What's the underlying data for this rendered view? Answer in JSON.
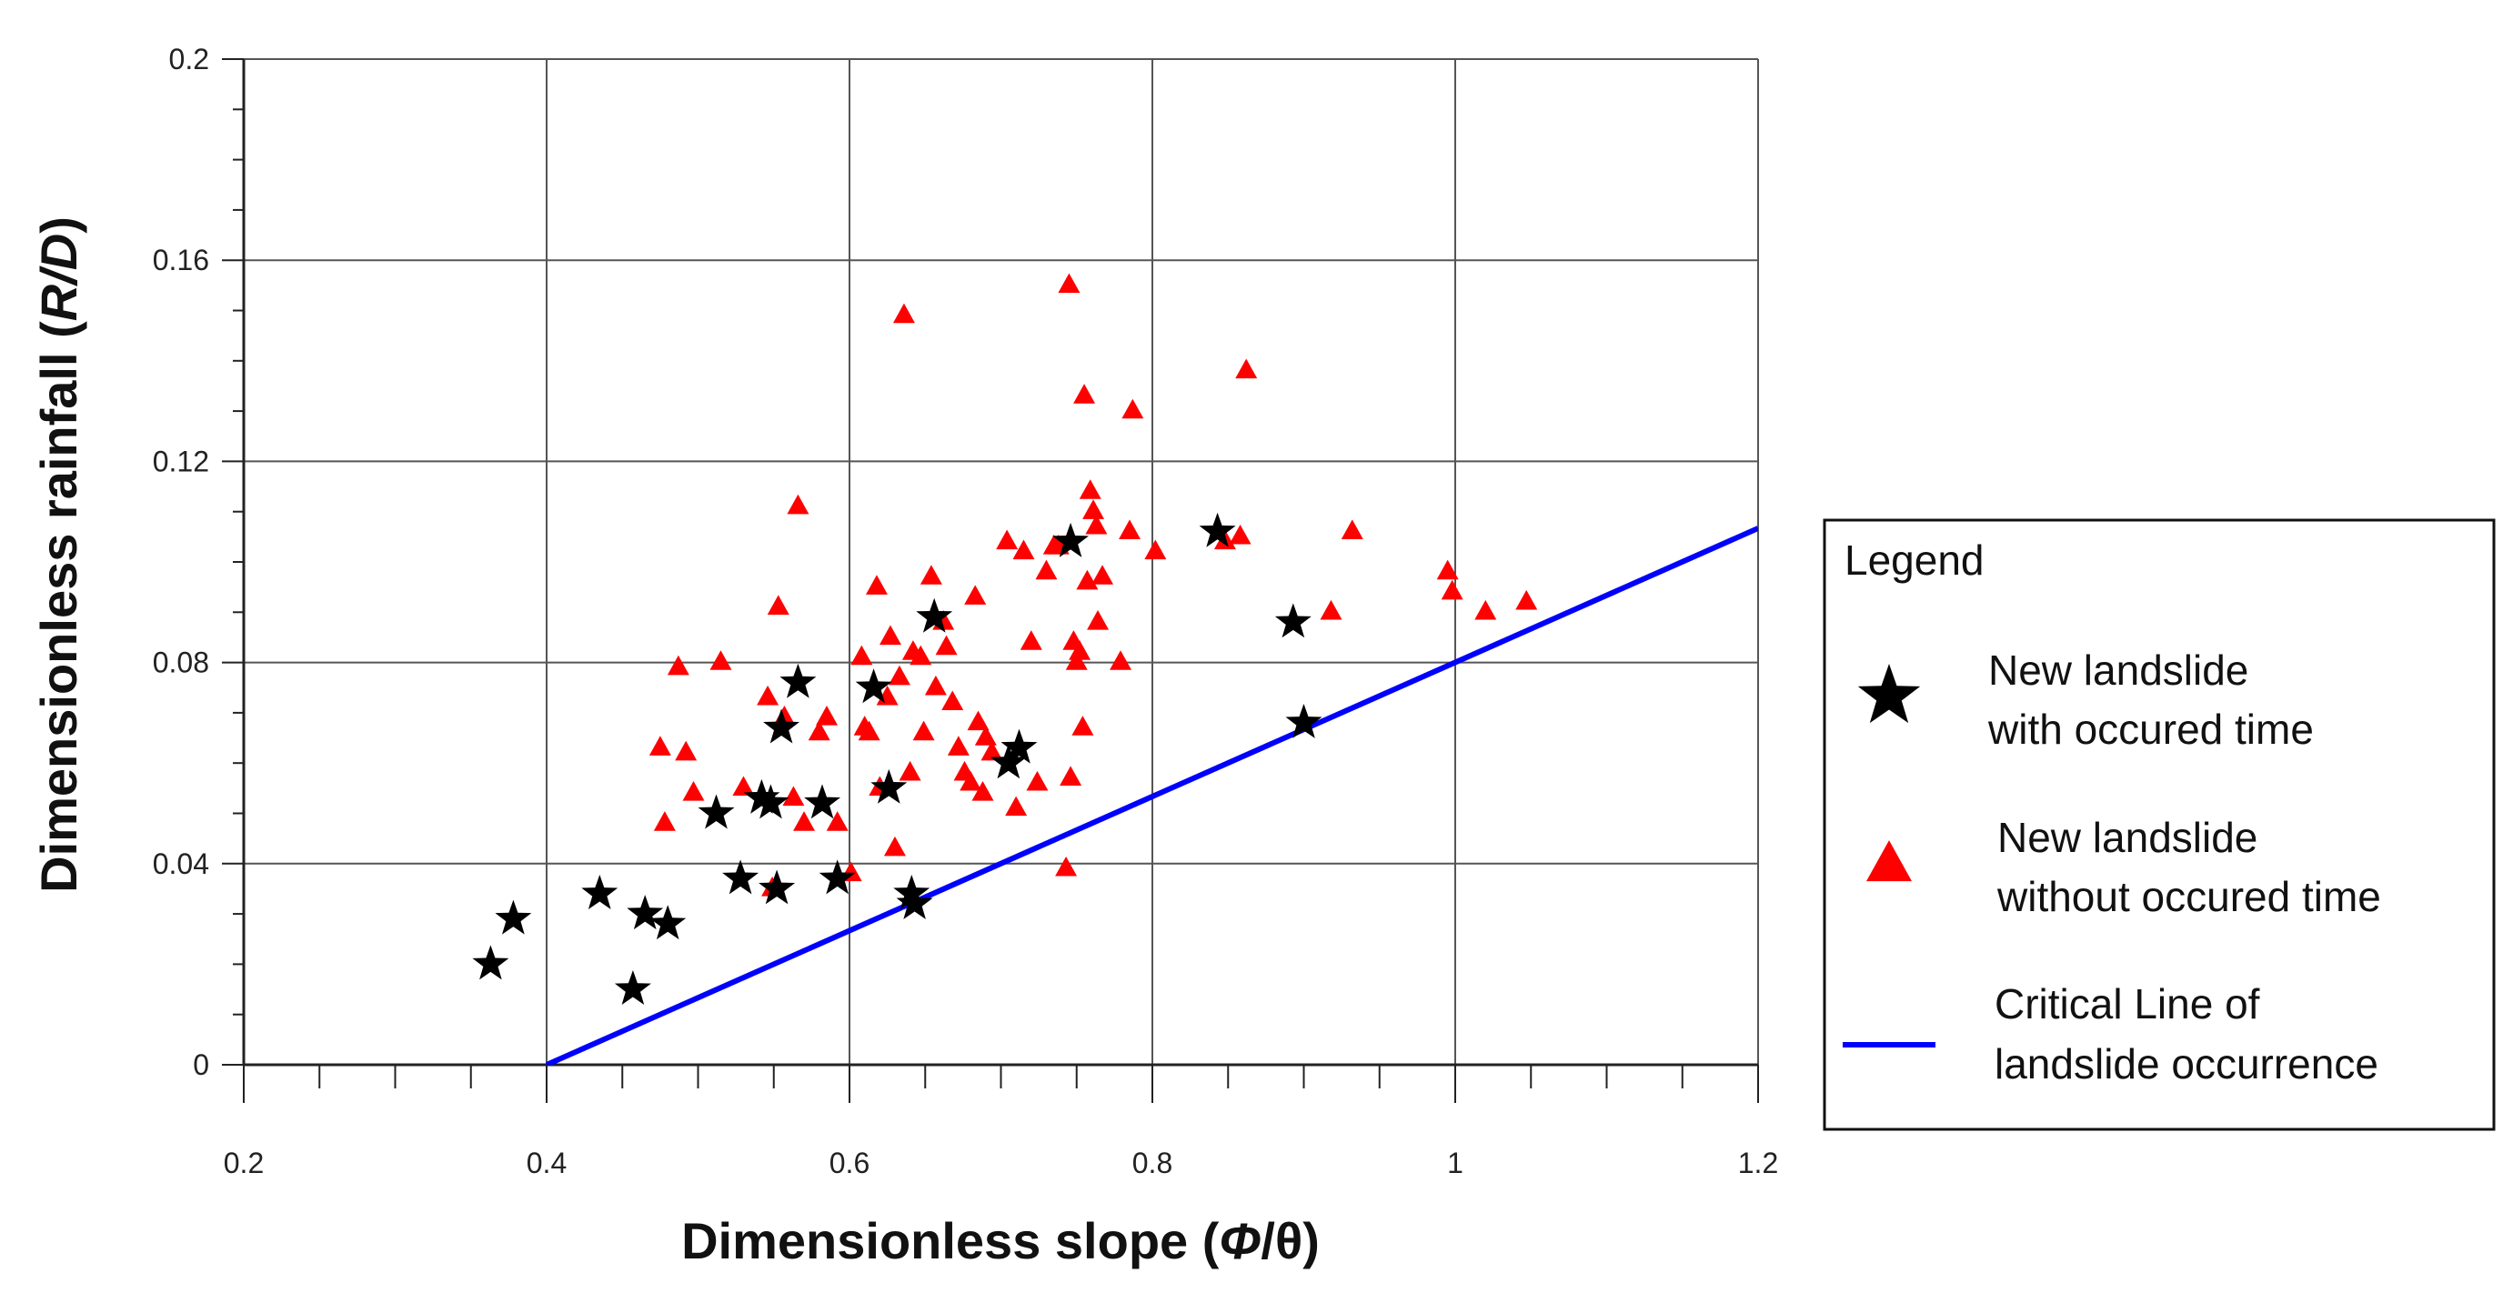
{
  "chart_data": {
    "type": "scatter",
    "title": "",
    "xlabel": {
      "prefix": "Dimensionless slope (",
      "italic": "Φ",
      "suffix": "/θ)"
    },
    "ylabel": {
      "prefix": "Dimensionless rainfall (",
      "italic": "R/D",
      "suffix": ")"
    },
    "xlim": [
      0.2,
      1.2
    ],
    "ylim": [
      0,
      0.2
    ],
    "x_ticks": [
      0.2,
      0.4,
      0.6,
      0.8,
      1.0,
      1.2
    ],
    "x_tick_labels": [
      "0.2",
      "0.4",
      "0.6",
      "0.8",
      "1",
      "1.2"
    ],
    "y_ticks": [
      0,
      0.04,
      0.08,
      0.12,
      0.16,
      0.2
    ],
    "y_tick_labels": [
      "0",
      "0.04",
      "0.08",
      "0.12",
      "0.16",
      "0.2"
    ],
    "grid": true,
    "legend": {
      "title": "Legend",
      "position": "right",
      "entries": [
        {
          "series": "stars",
          "lines": [
            "New landslide",
            "with occured time"
          ]
        },
        {
          "series": "triangles",
          "lines": [
            "New landslide",
            "without occured time"
          ]
        },
        {
          "series": "critical",
          "lines": [
            "Critical Line of",
            "landslide occurrence"
          ]
        }
      ]
    },
    "series": [
      {
        "name": "New landslide with occured time",
        "marker": "star",
        "color": "#000000",
        "points": [
          [
            0.363,
            0.02
          ],
          [
            0.378,
            0.029
          ],
          [
            0.435,
            0.034
          ],
          [
            0.457,
            0.015
          ],
          [
            0.465,
            0.03
          ],
          [
            0.48,
            0.028
          ],
          [
            0.512,
            0.05
          ],
          [
            0.528,
            0.037
          ],
          [
            0.542,
            0.053
          ],
          [
            0.548,
            0.052
          ],
          [
            0.552,
            0.035
          ],
          [
            0.555,
            0.067
          ],
          [
            0.566,
            0.076
          ],
          [
            0.582,
            0.052
          ],
          [
            0.592,
            0.037
          ],
          [
            0.616,
            0.075
          ],
          [
            0.626,
            0.055
          ],
          [
            0.641,
            0.034
          ],
          [
            0.643,
            0.032
          ],
          [
            0.656,
            0.089
          ],
          [
            0.705,
            0.06
          ],
          [
            0.712,
            0.063
          ],
          [
            0.746,
            0.104
          ],
          [
            0.843,
            0.106
          ],
          [
            0.893,
            0.088
          ],
          [
            0.9,
            0.068
          ]
        ]
      },
      {
        "name": "New landslide without occured time",
        "marker": "triangle",
        "color": "#ff0000",
        "points": [
          [
            0.475,
            0.063
          ],
          [
            0.478,
            0.048
          ],
          [
            0.487,
            0.079
          ],
          [
            0.492,
            0.062
          ],
          [
            0.497,
            0.054
          ],
          [
            0.515,
            0.08
          ],
          [
            0.53,
            0.055
          ],
          [
            0.546,
            0.073
          ],
          [
            0.549,
            0.035
          ],
          [
            0.553,
            0.091
          ],
          [
            0.557,
            0.069
          ],
          [
            0.563,
            0.053
          ],
          [
            0.566,
            0.111
          ],
          [
            0.57,
            0.048
          ],
          [
            0.58,
            0.066
          ],
          [
            0.585,
            0.069
          ],
          [
            0.592,
            0.048
          ],
          [
            0.601,
            0.038
          ],
          [
            0.608,
            0.081
          ],
          [
            0.61,
            0.067
          ],
          [
            0.613,
            0.066
          ],
          [
            0.618,
            0.095
          ],
          [
            0.62,
            0.055
          ],
          [
            0.625,
            0.073
          ],
          [
            0.627,
            0.085
          ],
          [
            0.63,
            0.043
          ],
          [
            0.633,
            0.077
          ],
          [
            0.636,
            0.149
          ],
          [
            0.64,
            0.058
          ],
          [
            0.642,
            0.082
          ],
          [
            0.647,
            0.081
          ],
          [
            0.649,
            0.066
          ],
          [
            0.654,
            0.097
          ],
          [
            0.657,
            0.075
          ],
          [
            0.662,
            0.088
          ],
          [
            0.664,
            0.083
          ],
          [
            0.668,
            0.072
          ],
          [
            0.672,
            0.063
          ],
          [
            0.676,
            0.058
          ],
          [
            0.68,
            0.056
          ],
          [
            0.683,
            0.093
          ],
          [
            0.685,
            0.068
          ],
          [
            0.688,
            0.054
          ],
          [
            0.69,
            0.065
          ],
          [
            0.694,
            0.062
          ],
          [
            0.704,
            0.104
          ],
          [
            0.71,
            0.051
          ],
          [
            0.715,
            0.102
          ],
          [
            0.72,
            0.084
          ],
          [
            0.724,
            0.056
          ],
          [
            0.73,
            0.098
          ],
          [
            0.735,
            0.103
          ],
          [
            0.738,
            0.103
          ],
          [
            0.743,
            0.039
          ],
          [
            0.745,
            0.155
          ],
          [
            0.746,
            0.057
          ],
          [
            0.748,
            0.084
          ],
          [
            0.75,
            0.08
          ],
          [
            0.752,
            0.082
          ],
          [
            0.754,
            0.067
          ],
          [
            0.755,
            0.133
          ],
          [
            0.757,
            0.096
          ],
          [
            0.759,
            0.114
          ],
          [
            0.761,
            0.11
          ],
          [
            0.763,
            0.107
          ],
          [
            0.764,
            0.088
          ],
          [
            0.767,
            0.097
          ],
          [
            0.779,
            0.08
          ],
          [
            0.785,
            0.106
          ],
          [
            0.787,
            0.13
          ],
          [
            0.802,
            0.102
          ],
          [
            0.848,
            0.104
          ],
          [
            0.858,
            0.105
          ],
          [
            0.862,
            0.138
          ],
          [
            0.918,
            0.09
          ],
          [
            0.932,
            0.106
          ],
          [
            0.995,
            0.098
          ],
          [
            0.998,
            0.094
          ],
          [
            1.02,
            0.09
          ],
          [
            1.047,
            0.092
          ]
        ]
      },
      {
        "name": "Critical Line of landslide occurrence",
        "marker": "line",
        "color": "#0000ff",
        "points": [
          [
            0.4,
            0.0
          ],
          [
            1.2,
            0.1067
          ]
        ]
      }
    ]
  }
}
